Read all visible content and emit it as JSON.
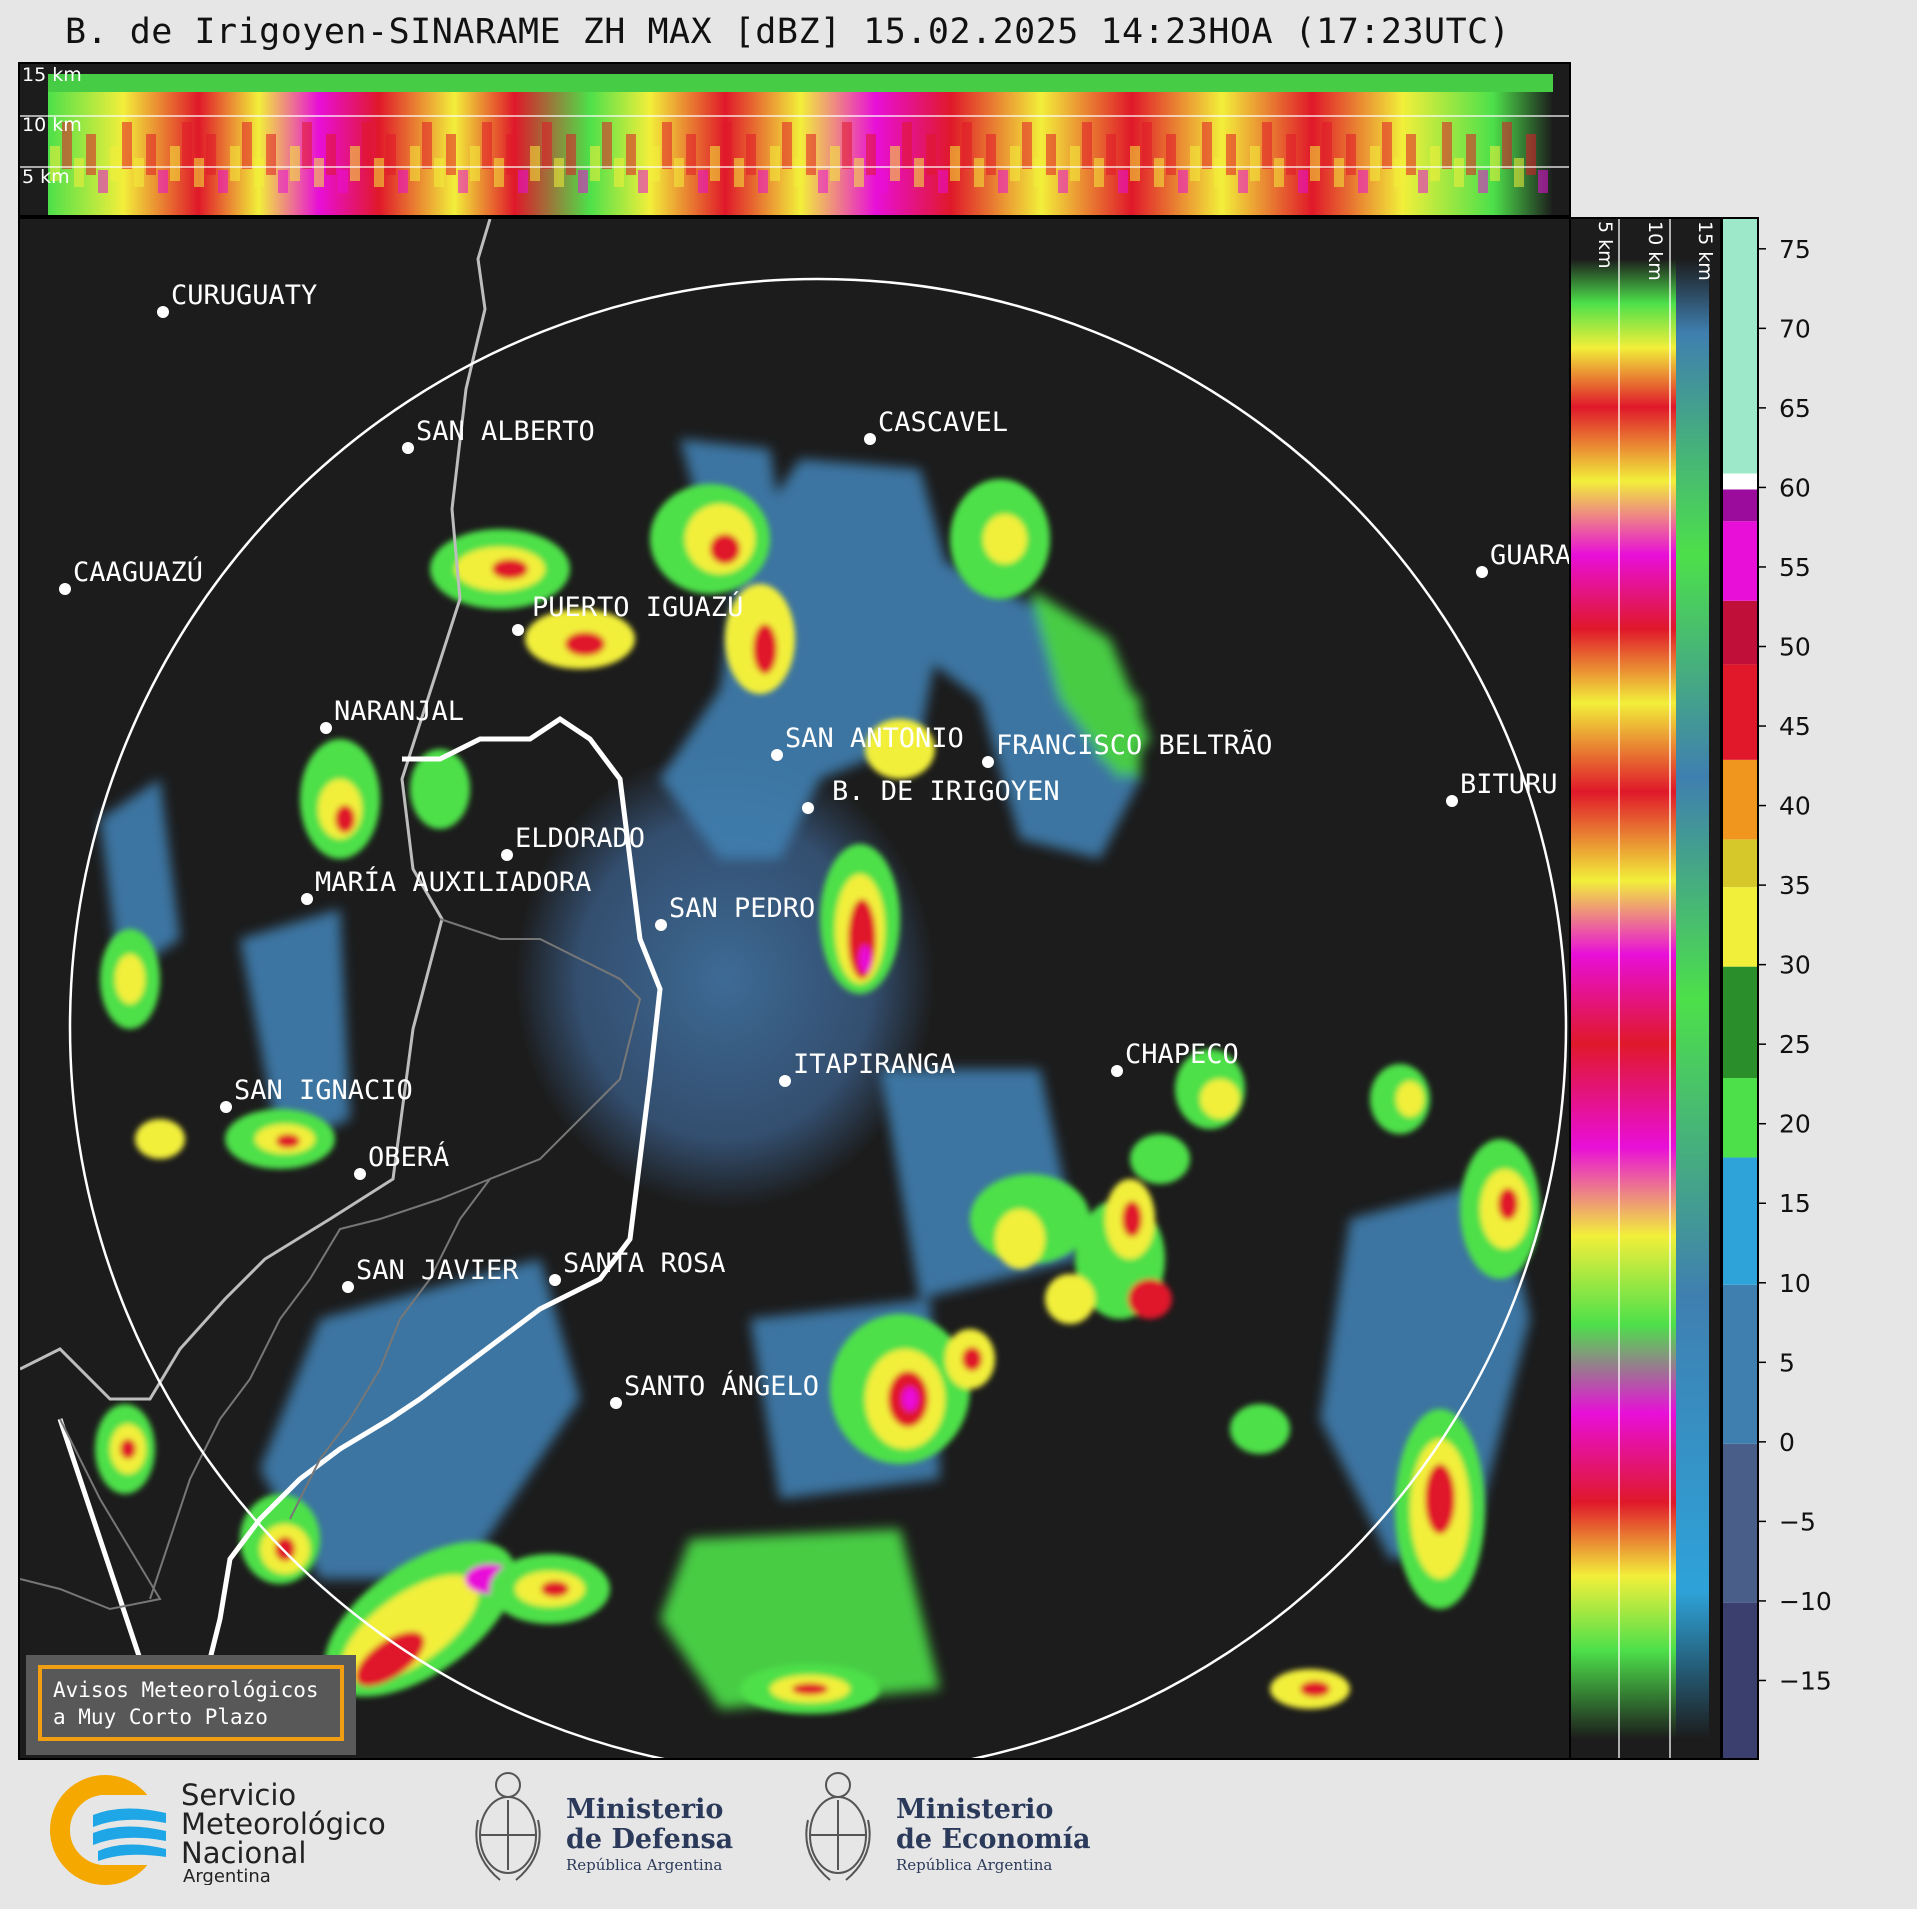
{
  "title": "B. de Irigoyen-SINARAME ZH MAX [dBZ] 15.02.2025 14:23HOA (17:23UTC)",
  "top_profile": {
    "height_labels": [
      "15 km",
      "10 km",
      "5 km"
    ]
  },
  "side_profile": {
    "height_labels": [
      "5 km",
      "10 km",
      "15 km"
    ]
  },
  "colorbar": {
    "unit": "dBZ",
    "ticks": [
      "75",
      "70",
      "65",
      "60",
      "55",
      "50",
      "45",
      "40",
      "35",
      "30",
      "25",
      "20",
      "15",
      "10",
      "5",
      "0",
      "−5",
      "−10",
      "−15"
    ],
    "range": [
      -20,
      77
    ],
    "stops": [
      {
        "from": -20,
        "to": -10,
        "color": "#3b3f6e"
      },
      {
        "from": -10,
        "to": 0,
        "color": "#4a5e8a"
      },
      {
        "from": 0,
        "to": 10,
        "color": "#3f7fb0"
      },
      {
        "from": 10,
        "to": 18,
        "color": "#2ea3d9"
      },
      {
        "from": 18,
        "to": 23,
        "color": "#4de04a"
      },
      {
        "from": 23,
        "to": 30,
        "color": "#2a8f2a"
      },
      {
        "from": 30,
        "to": 35,
        "color": "#f2ef3a"
      },
      {
        "from": 35,
        "to": 38,
        "color": "#d6c72a"
      },
      {
        "from": 38,
        "to": 43,
        "color": "#f0961e"
      },
      {
        "from": 43,
        "to": 49,
        "color": "#e0182a"
      },
      {
        "from": 49,
        "to": 53,
        "color": "#c0103a"
      },
      {
        "from": 53,
        "to": 58,
        "color": "#e80fd8"
      },
      {
        "from": 58,
        "to": 60,
        "color": "#9c0c9c"
      },
      {
        "from": 60,
        "to": 61,
        "color": "#ffffff"
      },
      {
        "from": 61,
        "to": 77,
        "color": "#9de8c8"
      }
    ]
  },
  "cities": [
    {
      "name": "CURUGUATY"
    },
    {
      "name": "SAN ALBERTO"
    },
    {
      "name": "CASCAVEL"
    },
    {
      "name": "CAAGUAZÚ"
    },
    {
      "name": "PUERTO IGUAZÚ"
    },
    {
      "name": "GUARA"
    },
    {
      "name": "NARANJAL"
    },
    {
      "name": "SAN ANTONIO"
    },
    {
      "name": "FRANCISCO BELTRÃO"
    },
    {
      "name": "B. DE IRIGOYEN"
    },
    {
      "name": "BITURU"
    },
    {
      "name": "ELDORADO"
    },
    {
      "name": "MARÍA AUXILIADORA"
    },
    {
      "name": "SAN PEDRO"
    },
    {
      "name": "CHAPECO"
    },
    {
      "name": "ITAPIRANGA"
    },
    {
      "name": "SAN IGNACIO"
    },
    {
      "name": "OBERÁ"
    },
    {
      "name": "SAN JAVIER"
    },
    {
      "name": "SANTA ROSA"
    },
    {
      "name": "SANTO ÁNGELO"
    }
  ],
  "notice": {
    "line1": "Avisos Meteorológicos",
    "line2": "a Muy Corto Plazo"
  },
  "logos": {
    "smn": {
      "line1": "Servicio",
      "line2": "Meteorológico",
      "line3": "Nacional",
      "line4": "Argentina"
    },
    "defensa": {
      "line1": "Ministerio",
      "line2": "de Defensa",
      "line3": "República Argentina"
    },
    "economia": {
      "line1": "Ministerio",
      "line2": "de Economía",
      "line3": "República Argentina"
    }
  }
}
